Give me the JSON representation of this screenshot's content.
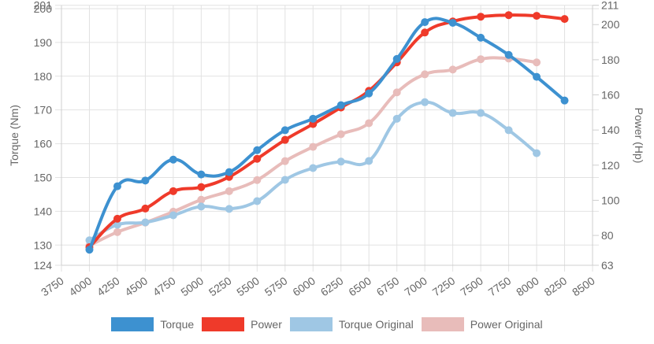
{
  "chart_data": {
    "type": "line",
    "title": "",
    "xlabel": "",
    "ylabel": "Torque (Nm)",
    "y2label": "Power (Hp)",
    "x_ticks": [
      3750,
      4000,
      4250,
      4500,
      4750,
      5000,
      5250,
      5500,
      5750,
      6000,
      6250,
      6500,
      6750,
      7000,
      7250,
      7500,
      7750,
      8000,
      8250,
      8500
    ],
    "xlim": [
      3750,
      8500
    ],
    "ylim": [
      124,
      201
    ],
    "y_ticks": [
      124,
      130,
      140,
      150,
      160,
      170,
      180,
      190,
      200,
      201
    ],
    "y2lim": [
      63,
      211
    ],
    "y2_ticks": [
      63,
      80,
      100,
      120,
      140,
      160,
      180,
      200,
      211
    ],
    "grid": true,
    "legend_position": "bottom",
    "x": [
      4000,
      4250,
      4500,
      4750,
      5000,
      5250,
      5500,
      5750,
      6000,
      6250,
      6500,
      6750,
      7000,
      7250,
      7500,
      7750,
      8000,
      8250
    ],
    "series": [
      {
        "name": "Torque",
        "axis": "left",
        "color": "#3d91d0",
        "values": [
          128.6,
          147.4,
          149.1,
          155.3,
          150.9,
          151.6,
          158.1,
          164.0,
          167.4,
          171.4,
          174.9,
          185.1,
          196.0,
          195.8,
          191.4,
          186.3,
          179.8,
          172.8
        ]
      },
      {
        "name": "Power",
        "axis": "right",
        "color": "#ef3a2a",
        "values": [
          73.3,
          89.5,
          95.3,
          105.2,
          107.5,
          113.3,
          123.6,
          134.4,
          143.4,
          152.8,
          162.3,
          178.5,
          195.5,
          201.8,
          204.5,
          205.4,
          205.0,
          203.2
        ]
      },
      {
        "name": "Torque Original",
        "axis": "left",
        "color": "#9fc7e4",
        "values": [
          131.4,
          136.0,
          136.7,
          138.8,
          141.4,
          140.7,
          143.0,
          149.3,
          152.8,
          154.7,
          154.9,
          167.4,
          172.3,
          169.1,
          169.1,
          164.0,
          157.2,
          null
        ]
      },
      {
        "name": "Power Original",
        "axis": "right",
        "color": "#e8bcba",
        "values": [
          74.2,
          81.9,
          87.3,
          93.5,
          100.3,
          105.2,
          111.5,
          122.3,
          130.4,
          137.6,
          143.9,
          161.4,
          171.7,
          174.4,
          180.3,
          180.7,
          178.5,
          null
        ]
      }
    ]
  }
}
